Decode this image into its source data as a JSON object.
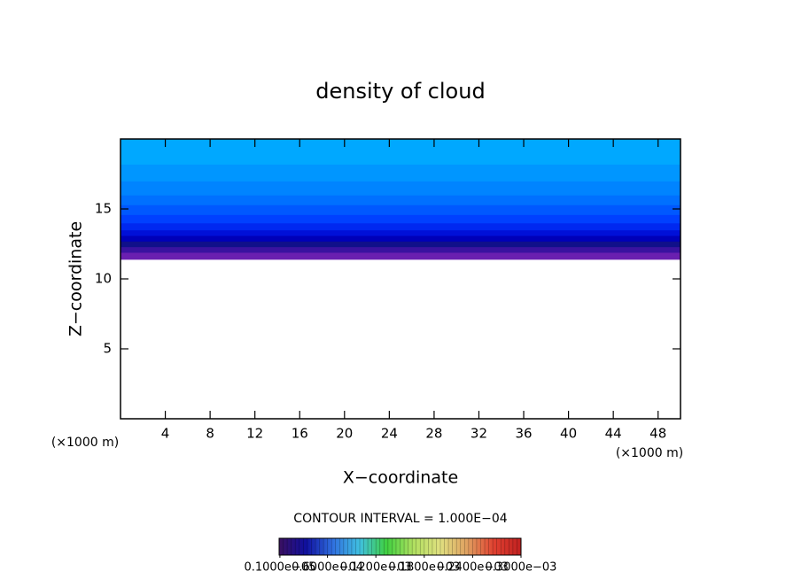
{
  "chart_data": {
    "type": "contour",
    "title": "density of cloud",
    "x_label": "X−coordinate",
    "y_label": "Z−coordinate",
    "x_unit": "(×1000 m)",
    "y_unit": "(×1000 m)",
    "contour_note": "CONTOUR INTERVAL = 1.000E−04",
    "xlim": [
      0,
      50
    ],
    "ylim": [
      0,
      20
    ],
    "xticks": [
      4,
      8,
      12,
      16,
      20,
      24,
      28,
      32,
      36,
      40,
      44,
      48
    ],
    "yticks": [
      5,
      10,
      15
    ],
    "levels": [
      11.4,
      11.9,
      12.3,
      12.7,
      13.1,
      13.5,
      14.0,
      14.6,
      15.3,
      16.0,
      17.0,
      18.2,
      20
    ],
    "colors": [
      "#6a1fb0",
      "#3a12a0",
      "#10108a",
      "#0000b8",
      "#0010d8",
      "#0028f0",
      "#0040ff",
      "#0058ff",
      "#0070ff",
      "#0084ff",
      "#0096ff",
      "#00a8ff"
    ],
    "colorbar": {
      "colormap": [
        "#3a1060",
        "#1010a0",
        "#3070e0",
        "#40c0e0",
        "#40d040",
        "#b0e060",
        "#e0e080",
        "#e0a060",
        "#e04030",
        "#c02020"
      ],
      "lim": [
        0,
        0.0003
      ],
      "ticks": [
        {
          "value": 1e-06,
          "label": "0.1000e−05"
        },
        {
          "value": 6e-05,
          "label": "0.6000e−04"
        },
        {
          "value": 0.00012,
          "label": "0.1200e−03"
        },
        {
          "value": 0.00018,
          "label": "0.1800e−03"
        },
        {
          "value": 0.00024,
          "label": "0.2400e−03"
        },
        {
          "value": 0.0003,
          "label": "0.3000e−03"
        }
      ]
    }
  }
}
